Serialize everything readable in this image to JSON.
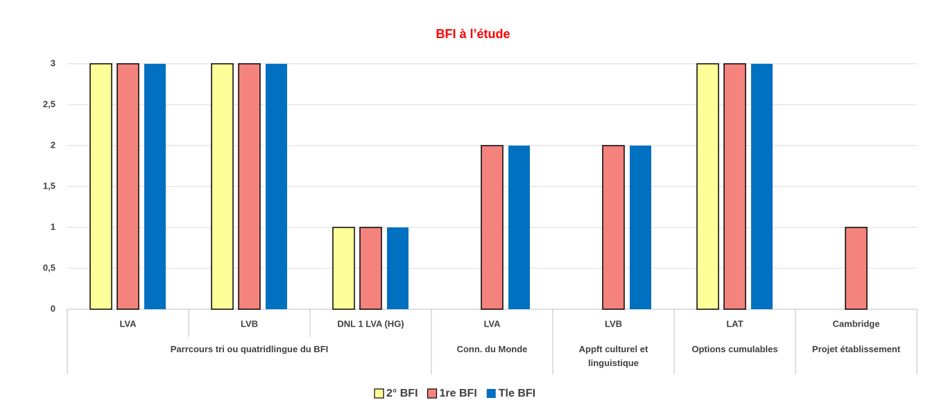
{
  "chart_data": {
    "type": "bar",
    "title": "BFI à l’étude",
    "groups": [
      {
        "label": "Parrcours tri ou quatridlingue du BFI",
        "categories": [
          "LVA",
          "LVB",
          "DNL 1 LVA (HG)"
        ]
      },
      {
        "label": "Conn. du Monde",
        "categories": [
          "LVA"
        ]
      },
      {
        "label": "Appft culturel et linguistique",
        "categories": [
          "LVB"
        ]
      },
      {
        "label": "Options cumulables",
        "categories": [
          "LAT"
        ]
      },
      {
        "label": "Projet établissement",
        "categories": [
          "Cambridge"
        ]
      }
    ],
    "series": [
      {
        "name": "2° BFI",
        "color": "#ffff99",
        "values": [
          3,
          3,
          1,
          null,
          null,
          3,
          null
        ]
      },
      {
        "name": "1re BFI",
        "color": "#f4837d",
        "values": [
          3,
          3,
          1,
          2,
          2,
          3,
          1
        ]
      },
      {
        "name": "Tle BFI",
        "color": "#0070c0",
        "values": [
          3,
          3,
          1,
          2,
          2,
          3,
          null
        ]
      }
    ],
    "ylim": [
      0,
      3
    ],
    "yticks": [
      0,
      {
        "value": 0.5,
        "label": "0,5"
      },
      1,
      {
        "value": 1.5,
        "label": "1,5"
      },
      2,
      {
        "value": 2.5,
        "label": "2,5"
      },
      3
    ],
    "grid": true,
    "legend": "bottom"
  }
}
